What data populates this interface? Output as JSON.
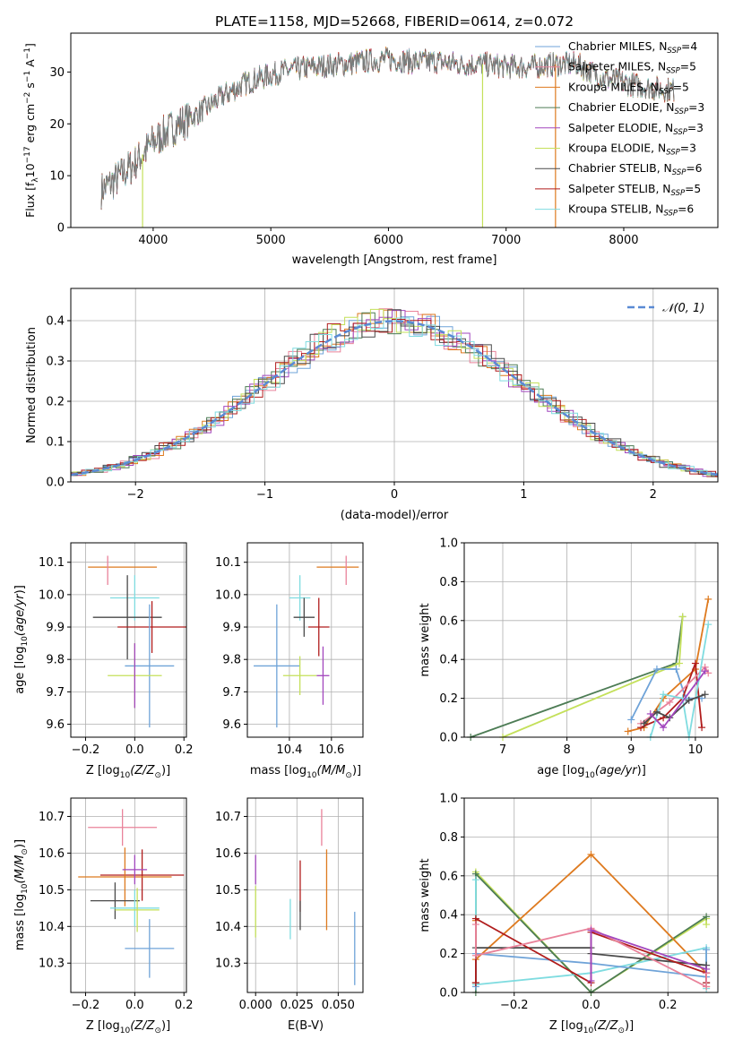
{
  "title": "PLATE=1158, MJD=52668, FIBERID=0614, z=0.072",
  "chart_data": [
    {
      "id": "spectrum",
      "type": "line",
      "xlabel": "wavelength [Angstrom, rest frame]",
      "ylabel": "Flux [f_λ10^-17 erg cm^-2 s^-1 A^-1]",
      "xlim": [
        3300,
        8800
      ],
      "ylim": [
        0,
        37.5
      ],
      "xticks": [
        4000,
        5000,
        6000,
        7000,
        8000
      ],
      "yticks": [
        0,
        10,
        20,
        30
      ],
      "legend_loc": "upper right",
      "continuum_x": [
        3550,
        3700,
        3850,
        4000,
        4150,
        4300,
        4450,
        4600,
        4800,
        5000,
        5200,
        5400,
        5600,
        5800,
        6000,
        6200,
        6400,
        6600,
        6800,
        7000,
        7200,
        7400,
        7600,
        7800,
        8000,
        8200,
        8450
      ],
      "continuum_y": [
        7,
        9.5,
        12.5,
        16.5,
        19,
        21,
        23,
        25.5,
        28,
        29.5,
        30.5,
        31,
        31.5,
        32,
        32.5,
        32,
        32,
        31.5,
        31.5,
        31,
        31,
        31.5,
        31.5,
        29,
        28,
        27,
        26.5
      ],
      "series": [
        {
          "name": "Chabrier MILES, N_SSP=4",
          "color": "#6fa3d8"
        },
        {
          "name": "Salpeter MILES, N_SSP=5",
          "color": "#e9829a"
        },
        {
          "name": "Kroupa MILES, N_SSP=5",
          "color": "#de7a1f"
        },
        {
          "name": "Chabrier ELODIE, N_SSP=3",
          "color": "#4d7c55"
        },
        {
          "name": "Salpeter ELODIE, N_SSP=3",
          "color": "#a246bd"
        },
        {
          "name": "Kroupa ELODIE, N_SSP=3",
          "color": "#c4e05a"
        },
        {
          "name": "Chabrier STELIB, N_SSP=6",
          "color": "#4a4a4a"
        },
        {
          "name": "Salpeter STELIB, N_SSP=5",
          "color": "#b01c1c"
        },
        {
          "name": "Kroupa STELIB, N_SSP=6",
          "color": "#7fdce0"
        }
      ],
      "legend": [
        {
          "label": "Chabrier MILES, N",
          "sub": "SSP",
          "rest": "=4"
        },
        {
          "label": "Salpeter MILES, N",
          "sub": "SSP",
          "rest": "=5"
        },
        {
          "label": "Kroupa MILES, N",
          "sub": "SSP",
          "rest": "=5"
        },
        {
          "label": "Chabrier ELODIE, N",
          "sub": "SSP",
          "rest": "=3"
        },
        {
          "label": "Salpeter ELODIE, N",
          "sub": "SSP",
          "rest": "=3"
        },
        {
          "label": "Kroupa ELODIE, N",
          "sub": "SSP",
          "rest": "=3"
        },
        {
          "label": "Chabrier STELIB, N",
          "sub": "SSP",
          "rest": "=6"
        },
        {
          "label": "Salpeter STELIB, N",
          "sub": "SSP",
          "rest": "=5"
        },
        {
          "label": "Kroupa STELIB, N",
          "sub": "SSP",
          "rest": "=6"
        }
      ],
      "spikes": [
        {
          "x": 3910,
          "y": 0,
          "color": "#c4e05a"
        },
        {
          "x": 6800,
          "y": 0,
          "color": "#c4e05a"
        },
        {
          "x": 7420,
          "y": 0,
          "color": "#de7a1f"
        }
      ]
    },
    {
      "id": "residuals",
      "type": "area",
      "xlabel": "(data-model)/error",
      "ylabel": "Normed distribution",
      "xlim": [
        -2.5,
        2.5
      ],
      "ylim": [
        0,
        0.48
      ],
      "xticks": [
        -2,
        -1,
        0,
        1,
        2
      ],
      "yticks": [
        0.0,
        0.1,
        0.2,
        0.3,
        0.4
      ],
      "grid": true,
      "legend_loc": "upper right",
      "gaussian_label": "𝒩(0, 1)",
      "gaussian_color": "#5a8ad4"
    },
    {
      "id": "age-vs-Z",
      "type": "scatter",
      "xlabel": "Z [log10(Z/Z⊙)]",
      "ylabel": "age [log10(age/yr)]",
      "xlim": [
        -0.26,
        0.21
      ],
      "ylim": [
        9.56,
        10.16
      ],
      "xticks": [
        -0.2,
        0.0,
        0.2
      ],
      "yticks": [
        9.6,
        9.7,
        9.8,
        9.9,
        10.0,
        10.1
      ],
      "grid": true,
      "points": [
        {
          "x": -0.05,
          "xerr": 0.14,
          "y": 10.085,
          "yerr": 0.0,
          "color": "#de7a1f"
        },
        {
          "x": -0.11,
          "xerr": 0.0,
          "y": 10.075,
          "yerr": 0.045,
          "color": "#e9829a"
        },
        {
          "x": 0.0,
          "xerr": 0.1,
          "y": 9.99,
          "yerr": 0.07,
          "color": "#7fdce0"
        },
        {
          "x": -0.03,
          "xerr": 0.14,
          "y": 9.93,
          "yerr": 0.13,
          "color": "#4a4a4a"
        },
        {
          "x": 0.07,
          "xerr": 0.14,
          "y": 9.9,
          "yerr": 0.08,
          "color": "#b01c1c"
        },
        {
          "x": 0.06,
          "xerr": 0.1,
          "y": 9.78,
          "yerr": 0.19,
          "color": "#6fa3d8"
        },
        {
          "x": 0.0,
          "xerr": 0.11,
          "y": 9.75,
          "yerr": 0.1,
          "color": "#c4e05a"
        },
        {
          "x": 0.0,
          "xerr": 0.0,
          "y": 9.75,
          "yerr": 0.1,
          "color": "#a246bd"
        }
      ]
    },
    {
      "id": "age-vs-mass",
      "type": "scatter",
      "xlabel": "mass [log10(M/M⊙)]",
      "ylabel": "",
      "xlim": [
        10.2,
        10.75
      ],
      "ylim": [
        9.56,
        10.16
      ],
      "xticks": [
        10.4,
        10.6
      ],
      "yticks": [
        9.6,
        9.7,
        9.8,
        9.9,
        10.0,
        10.1
      ],
      "grid": true,
      "points": [
        {
          "x": 10.63,
          "xerr": 0.1,
          "y": 10.085,
          "yerr": 0.0,
          "color": "#de7a1f"
        },
        {
          "x": 10.67,
          "xerr": 0.0,
          "y": 10.075,
          "yerr": 0.045,
          "color": "#e9829a"
        },
        {
          "x": 10.45,
          "xerr": 0.05,
          "y": 9.99,
          "yerr": 0.07,
          "color": "#7fdce0"
        },
        {
          "x": 10.47,
          "xerr": 0.05,
          "y": 9.93,
          "yerr": 0.06,
          "color": "#4a4a4a"
        },
        {
          "x": 10.54,
          "xerr": 0.05,
          "y": 9.9,
          "yerr": 0.09,
          "color": "#b01c1c"
        },
        {
          "x": 10.34,
          "xerr": 0.11,
          "y": 9.78,
          "yerr": 0.19,
          "color": "#6fa3d8"
        },
        {
          "x": 10.45,
          "xerr": 0.08,
          "y": 9.75,
          "yerr": 0.06,
          "color": "#c4e05a"
        },
        {
          "x": 10.56,
          "xerr": 0.03,
          "y": 9.75,
          "yerr": 0.09,
          "color": "#a246bd"
        }
      ]
    },
    {
      "id": "massweight-vs-age",
      "type": "line",
      "xlabel": "age [log10(age/yr)]",
      "ylabel": "mass weight",
      "xlim": [
        6.4,
        10.35
      ],
      "ylim": [
        0.0,
        1.0
      ],
      "xticks": [
        7,
        8,
        9,
        10
      ],
      "yticks": [
        0.0,
        0.2,
        0.4,
        0.6,
        0.8,
        1.0
      ],
      "grid": true,
      "series": [
        {
          "color": "#4d7c55",
          "x": [
            6.5,
            9.7,
            9.8
          ],
          "y": [
            0.0,
            0.38,
            0.62
          ]
        },
        {
          "color": "#c4e05a",
          "x": [
            7.0,
            9.75,
            9.8
          ],
          "y": [
            0.0,
            0.38,
            0.62
          ]
        },
        {
          "color": "#6fa3d8",
          "x": [
            9.0,
            9.4,
            9.7,
            9.85,
            10.1
          ],
          "y": [
            0.09,
            0.35,
            0.35,
            0.2,
            0.2
          ]
        },
        {
          "color": "#de7a1f",
          "x": [
            8.95,
            9.2,
            9.5,
            10.0,
            10.2
          ],
          "y": [
            0.03,
            0.05,
            0.2,
            0.35,
            0.71
          ]
        },
        {
          "color": "#b01c1c",
          "x": [
            9.15,
            9.5,
            9.8,
            10.0,
            10.1
          ],
          "y": [
            0.05,
            0.1,
            0.2,
            0.38,
            0.05
          ]
        },
        {
          "color": "#e9829a",
          "x": [
            9.15,
            9.6,
            10.15,
            10.2
          ],
          "y": [
            0.07,
            0.18,
            0.36,
            0.33
          ]
        },
        {
          "color": "#7fdce0",
          "x": [
            9.3,
            9.5,
            9.8,
            9.9,
            10.2
          ],
          "y": [
            0.0,
            0.22,
            0.2,
            0.0,
            0.58
          ]
        },
        {
          "color": "#4a4a4a",
          "x": [
            9.2,
            9.4,
            9.6,
            9.9,
            10.15
          ],
          "y": [
            0.07,
            0.13,
            0.1,
            0.19,
            0.22
          ]
        },
        {
          "color": "#a246bd",
          "x": [
            9.3,
            9.5,
            10.15
          ],
          "y": [
            0.12,
            0.05,
            0.34
          ]
        }
      ]
    },
    {
      "id": "mass-vs-Z",
      "type": "scatter",
      "xlabel": "Z [log10(Z/Z⊙)]",
      "ylabel": "mass [log10(M/M⊙)]",
      "xlim": [
        -0.26,
        0.21
      ],
      "ylim": [
        10.22,
        10.75
      ],
      "xticks": [
        -0.2,
        0.0,
        0.2
      ],
      "yticks": [
        10.3,
        10.4,
        10.5,
        10.6,
        10.7
      ],
      "grid": true,
      "points": [
        {
          "x": -0.05,
          "xerr": 0.14,
          "y": 10.67,
          "yerr": 0.05,
          "color": "#e9829a"
        },
        {
          "x": 0.03,
          "xerr": 0.17,
          "y": 10.54,
          "yerr": 0.07,
          "color": "#b01c1c"
        },
        {
          "x": -0.04,
          "xerr": 0.19,
          "y": 10.535,
          "yerr": 0.08,
          "color": "#de7a1f"
        },
        {
          "x": 0.0,
          "xerr": 0.05,
          "y": 10.555,
          "yerr": 0.04,
          "color": "#a246bd"
        },
        {
          "x": -0.08,
          "xerr": 0.1,
          "y": 10.47,
          "yerr": 0.05,
          "color": "#4a4a4a"
        },
        {
          "x": 0.0,
          "xerr": 0.1,
          "y": 10.45,
          "yerr": 0.05,
          "color": "#7fdce0"
        },
        {
          "x": 0.01,
          "xerr": 0.09,
          "y": 10.445,
          "yerr": 0.06,
          "color": "#c4e05a"
        },
        {
          "x": 0.06,
          "xerr": 0.1,
          "y": 10.34,
          "yerr": 0.08,
          "color": "#6fa3d8"
        }
      ]
    },
    {
      "id": "mass-vs-EBV",
      "type": "scatter",
      "xlabel": "E(B-V)",
      "ylabel": "",
      "xlim": [
        -0.005,
        0.065
      ],
      "ylim": [
        10.22,
        10.75
      ],
      "xticks": [
        0.0,
        0.025,
        0.05
      ],
      "xticklabels": [
        "0.000",
        "0.025",
        "0.050"
      ],
      "yticks": [
        10.3,
        10.4,
        10.5,
        10.6,
        10.7
      ],
      "grid": true,
      "points": [
        {
          "x": 0.04,
          "xerr": 0.0,
          "y": 10.67,
          "yerr": 0.05,
          "color": "#e9829a"
        },
        {
          "x": 0.043,
          "xerr": 0.0,
          "y": 10.5,
          "yerr": 0.11,
          "color": "#de7a1f"
        },
        {
          "x": 0.0,
          "xerr": 0.0,
          "y": 10.555,
          "yerr": 0.04,
          "color": "#a246bd"
        },
        {
          "x": 0.0,
          "xerr": 0.0,
          "y": 10.44,
          "yerr": 0.07,
          "color": "#c4e05a"
        },
        {
          "x": 0.027,
          "xerr": 0.0,
          "y": 10.51,
          "yerr": 0.07,
          "color": "#b01c1c"
        },
        {
          "x": 0.027,
          "xerr": 0.0,
          "y": 10.43,
          "yerr": 0.04,
          "color": "#4a4a4a"
        },
        {
          "x": 0.021,
          "xerr": 0.0,
          "y": 10.42,
          "yerr": 0.055,
          "color": "#7fdce0"
        },
        {
          "x": 0.06,
          "xerr": 0.0,
          "y": 10.34,
          "yerr": 0.1,
          "color": "#6fa3d8"
        }
      ]
    },
    {
      "id": "massweight-vs-Z",
      "type": "line",
      "xlabel": "Z [log10(Z/Z⊙)]",
      "ylabel": "mass weight",
      "xlim": [
        -0.33,
        0.33
      ],
      "ylim": [
        0.0,
        1.0
      ],
      "xticks": [
        -0.2,
        0.0,
        0.2
      ],
      "yticks": [
        0.0,
        0.2,
        0.4,
        0.6,
        0.8,
        1.0
      ],
      "grid": true,
      "series": [
        {
          "color": "#c4e05a",
          "x": [
            -0.3,
            -0.3,
            0.0,
            0.3,
            0.3
          ],
          "y": [
            0.05,
            0.62,
            0.0,
            0.38,
            0.35
          ]
        },
        {
          "color": "#4d7c55",
          "x": [
            -0.3,
            -0.3,
            0.0,
            0.3
          ],
          "y": [
            0.0,
            0.61,
            0.0,
            0.39
          ]
        },
        {
          "color": "#de7a1f",
          "x": [
            -0.3,
            -0.3,
            0.0,
            0.3,
            0.3
          ],
          "y": [
            0.37,
            0.17,
            0.71,
            0.1,
            0.03
          ]
        },
        {
          "color": "#7fdce0",
          "x": [
            -0.3,
            -0.3,
            0.0,
            0.3,
            0.3
          ],
          "y": [
            0.58,
            0.04,
            0.1,
            0.23,
            0.02
          ]
        },
        {
          "color": "#6fa3d8",
          "x": [
            -0.3,
            -0.3,
            0.0,
            0.3,
            0.3
          ],
          "y": [
            0.03,
            0.2,
            0.15,
            0.08,
            0.22
          ]
        },
        {
          "color": "#4a4a4a",
          "x": [
            -0.3,
            -0.3,
            0.0,
            0.0,
            0.3,
            0.3
          ],
          "y": [
            0.05,
            0.23,
            0.23,
            0.2,
            0.14,
            0.05
          ]
        },
        {
          "color": "#b01c1c",
          "x": [
            -0.3,
            -0.3,
            0.0,
            0.0,
            0.3,
            0.3
          ],
          "y": [
            0.05,
            0.38,
            0.05,
            0.31,
            0.1,
            0.05
          ]
        },
        {
          "color": "#e9829a",
          "x": [
            -0.3,
            -0.3,
            0.0,
            0.3,
            0.3
          ],
          "y": [
            0.35,
            0.19,
            0.33,
            0.03,
            0.1
          ]
        },
        {
          "color": "#a246bd",
          "x": [
            0.0,
            0.0,
            0.3
          ],
          "y": [
            0.06,
            0.32,
            0.12
          ]
        }
      ]
    }
  ]
}
